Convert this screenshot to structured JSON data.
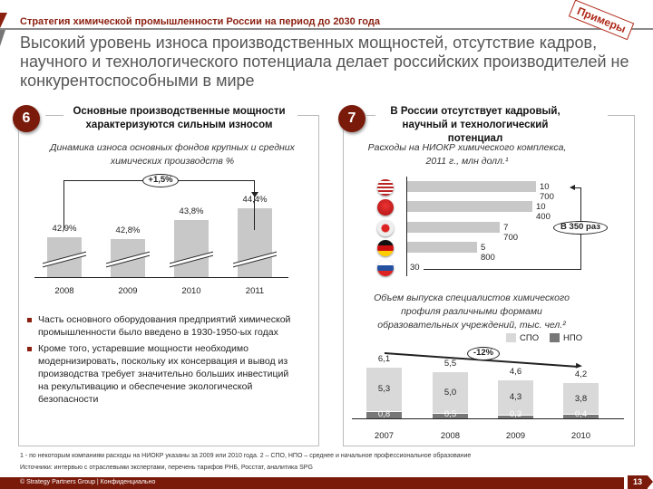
{
  "header": {
    "supertitle": "Стратегия химической промышленности России на период до 2030 года",
    "title": "Высокий уровень износа производственных мощностей, отсутствие кадров, научного и технологического потенциала делает российских производителей не конкурентоспособными в мире",
    "stamp": "Примеры"
  },
  "left": {
    "number": "6",
    "title": "Основные производственные мощности характеризуются сильным износом",
    "bullets": [
      "Часть основного оборудования предприятий химической промышленности было введено в 1930-1950-ых годах",
      "Кроме того, устаревшие мощности необходимо модернизировать, поскольку их консервация и вывод из производства требует значительно больших инвестиций на рекультивацию и обеспечение экологической безопасности"
    ]
  },
  "right": {
    "number": "7",
    "title": "В России отсутствует кадровый, научный и технологический потенциал"
  },
  "chart_data": [
    {
      "type": "bar",
      "title": "Динамика износа основных фондов крупных и средних химических производств %",
      "categories": [
        "2008",
        "2009",
        "2010",
        "2011"
      ],
      "values": [
        42.9,
        42.8,
        43.8,
        44.4
      ],
      "labels": [
        "42,9%",
        "42,8%",
        "43,8%",
        "44,4%"
      ],
      "annotation": "+1,5%",
      "axis_break": true
    },
    {
      "type": "bar",
      "orientation": "horizontal",
      "title": "Расходы на НИОКР химического комплекса, 2011 г., млн долл.¹",
      "categories": [
        "США",
        "Китай",
        "Япония",
        "Германия",
        "Россия"
      ],
      "flags": [
        "us",
        "cn",
        "jp",
        "de",
        "ru"
      ],
      "values": [
        10700,
        10400,
        7700,
        5800,
        30
      ],
      "labels": [
        "10 700",
        "10 400",
        "7 700",
        "5 800",
        "30"
      ],
      "annotation": "В 350 раз"
    },
    {
      "type": "bar",
      "stacked": true,
      "title": "Объем выпуска специалистов химического профиля различными формами образовательных учреждений, тыс. чел.²",
      "categories": [
        "2007",
        "2008",
        "2009",
        "2010"
      ],
      "series": [
        {
          "name": "СПО",
          "values": [
            5.3,
            5.0,
            4.3,
            3.8
          ],
          "labels": [
            "5,3",
            "5,0",
            "4,3",
            "3,8"
          ],
          "color": "#d9d9d9"
        },
        {
          "name": "НПО",
          "values": [
            0.8,
            0.5,
            0.3,
            0.4
          ],
          "labels": [
            "0,8",
            "0,5",
            "0,3",
            "0,4"
          ],
          "color": "#777777"
        }
      ],
      "totals": [
        6.1,
        5.5,
        4.6,
        4.2
      ],
      "total_labels": [
        "6,1",
        "5,5",
        "4,6",
        "4,2"
      ],
      "annotation": "-12%"
    }
  ],
  "footnotes": [
    "1 - по некоторым компаниям расходы на НИОКР указаны за 2009 или 2010 года. 2 – СПО, НПО – среднее и начальное профессиональное образование",
    "Источники: интервью с отраслевыми экспертами, перечень тарифов РНБ, Росстат, аналитика SPG"
  ],
  "footer": {
    "text": "© Strategy Partners Group | Конфиденциально",
    "page": "13"
  },
  "colors": {
    "brand": "#7a1a0a",
    "bar": "#c8c8c8"
  }
}
